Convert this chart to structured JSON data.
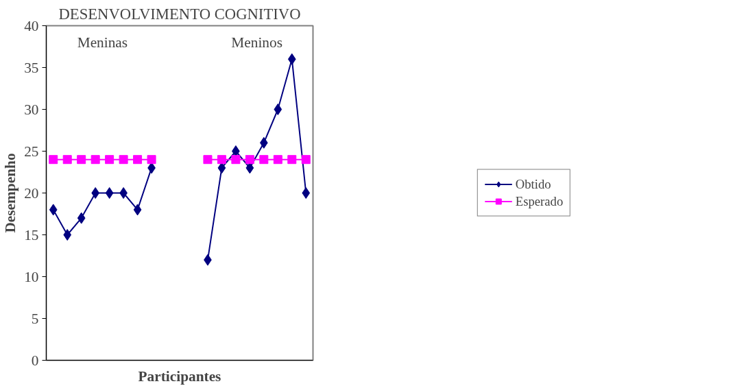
{
  "chart_data": {
    "type": "line",
    "title": "DESENVOLVIMENTO COGNITIVO",
    "xlabel": "Participantes",
    "ylabel": "Desempenho",
    "categories": [
      null,
      null,
      null,
      null,
      null,
      null,
      null,
      null,
      null,
      null,
      null,
      null,
      null,
      null,
      null,
      null,
      null,
      null,
      null
    ],
    "series": [
      {
        "name": "Obtido",
        "color": "#000080",
        "marker": "diamond",
        "values": [
          18,
          15,
          17,
          20,
          20,
          20,
          18,
          23,
          null,
          null,
          null,
          12,
          23,
          25,
          23,
          26,
          30,
          36,
          20
        ]
      },
      {
        "name": "Esperado",
        "color": "#ff00ff",
        "marker": "square",
        "values": [
          24,
          24,
          24,
          24,
          24,
          24,
          24,
          24,
          null,
          null,
          null,
          24,
          24,
          24,
          24,
          24,
          24,
          24,
          24
        ]
      }
    ],
    "annotations": [
      "Meninas",
      "Meninos"
    ],
    "ylim": [
      0,
      40
    ],
    "yticks": [
      0,
      5,
      10,
      15,
      20,
      25,
      30,
      35,
      40
    ],
    "grid": false,
    "legend": "right"
  }
}
